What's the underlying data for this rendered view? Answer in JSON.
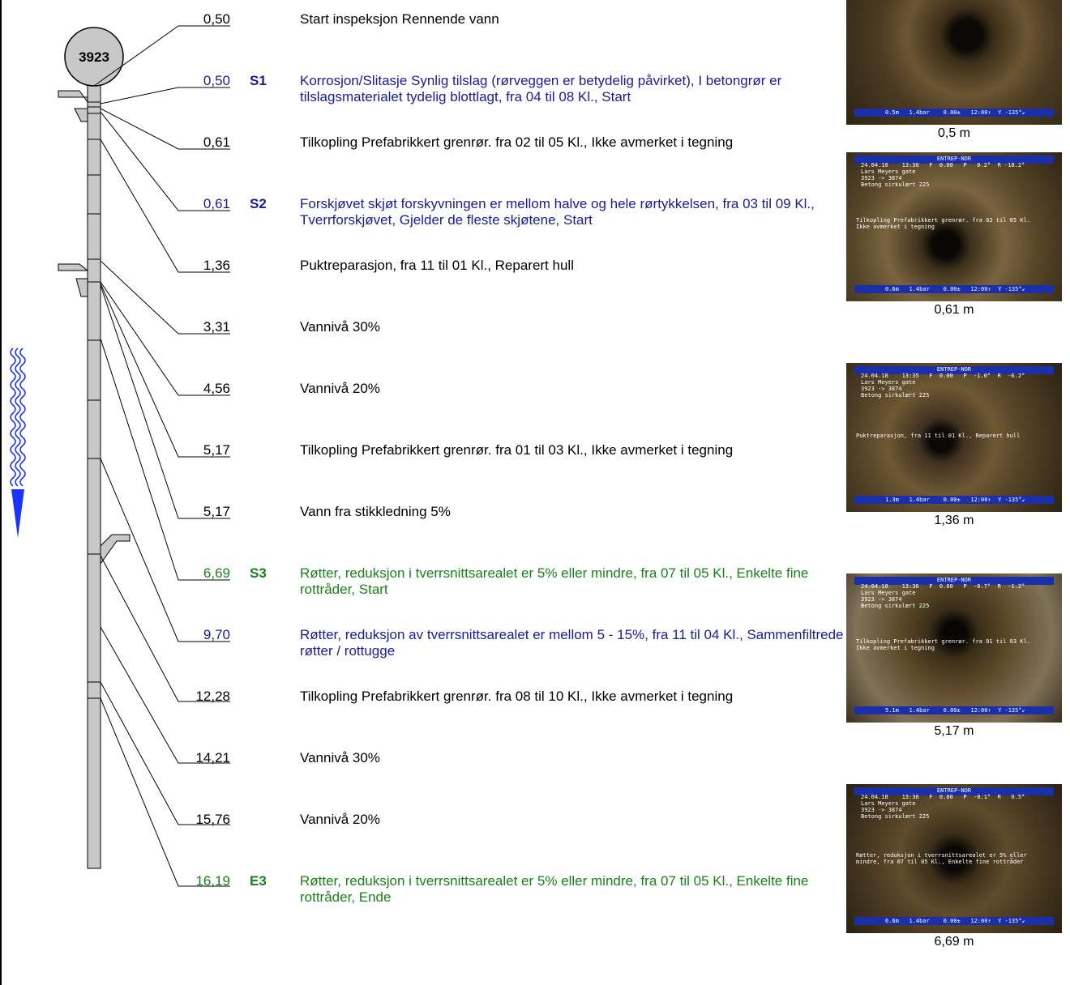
{
  "manhole_label": "3923",
  "colors": {
    "black": "#000000",
    "blue": "#1a1a99",
    "green": "#1a801a",
    "pipe": "#c8c8c8",
    "arrow": "#1a33ff"
  },
  "entries": [
    {
      "dist": "0,50",
      "code": "",
      "text": "Start inspeksjon Rennende vann",
      "color": "black"
    },
    {
      "dist": "0,50",
      "code": "S1",
      "text": "Korrosjon/Slitasje Synlig tilslag (rørveggen er betydelig påvirket), I betongrør er tilslagsmaterialet tydelig blottlagt, fra 04 til 08 Kl., Start",
      "color": "blue"
    },
    {
      "dist": "0,61",
      "code": "",
      "text": "Tilkopling Prefabrikkert grenrør. fra 02 til 05 Kl., Ikke avmerket i tegning",
      "color": "black"
    },
    {
      "dist": "0,61",
      "code": "S2",
      "text": "Forskjøvet skjøt forskyvningen er mellom halve og hele rørtykkelsen, fra 03 til 09 Kl., Tverrforskjøvet, Gjelder de fleste skjøtene, Start",
      "color": "blue"
    },
    {
      "dist": "1,36",
      "code": "",
      "text": "Puktreparasjon, fra 11 til 01 Kl., Reparert hull",
      "color": "black"
    },
    {
      "dist": "3,31",
      "code": "",
      "text": "Vannivå 30%",
      "color": "black"
    },
    {
      "dist": "4,56",
      "code": "",
      "text": "Vannivå 20%",
      "color": "black"
    },
    {
      "dist": "5,17",
      "code": "",
      "text": "Tilkopling Prefabrikkert grenrør. fra 01 til 03 Kl., Ikke avmerket i tegning",
      "color": "black"
    },
    {
      "dist": "5,17",
      "code": "",
      "text": "Vann fra stikkledning 5%",
      "color": "black"
    },
    {
      "dist": "6,69",
      "code": "S3",
      "text": "Røtter, reduksjon i tverrsnittsarealet er 5% eller mindre, fra 07 til 05 Kl., Enkelte fine rottråder, Start",
      "color": "green"
    },
    {
      "dist": "9,70",
      "code": "",
      "text": "Røtter, reduksjon av tverrsnittsarealet er mellom 5 - 15%, fra 11 til 04 Kl., Sammenfiltrede røtter / rottugge",
      "color": "blue"
    },
    {
      "dist": "12,28",
      "code": "",
      "text": "Tilkopling Prefabrikkert grenrør. fra 08 til 10 Kl., Ikke avmerket i tegning",
      "color": "black"
    },
    {
      "dist": "14,21",
      "code": "",
      "text": "Vannivå 30%",
      "color": "black"
    },
    {
      "dist": "15,76",
      "code": "",
      "text": "Vannivå 20%",
      "color": "black"
    },
    {
      "dist": "16,19",
      "code": "E3",
      "text": "Røtter, reduksjon i tverrsnittsarealet er 5% eller mindre, fra 07 til 05 Kl., Enkelte fine rottråder, Ende",
      "color": "green"
    }
  ],
  "photos": [
    {
      "caption": "0,5 m",
      "header_center": "",
      "header": "",
      "overlay": "Start inspeksjon Rennende vann",
      "footer": "0.5m   1.4bar    0.00±   12:00↑  Y -135°↙"
    },
    {
      "caption": "0,61 m",
      "header_center": "ENTREP-NOR",
      "header": "24.04.18    13:30   F  0.00   P   0.2°  R -18.2°\nLars Meyers gate\n3923 -> 3874\nBetong sirkulært 225",
      "overlay": "Tilkopling Prefabrikkert grenrør. fra 02 til 05 Kl.\nIkke avmerket i tegning",
      "footer": "0.6m   1.4bar    0.00±   12:00↑  Y -135°↙"
    },
    {
      "caption": "1,36 m",
      "header_center": "ENTREP-NOR",
      "header": "24.04.18    13:35   F  0.00   P  -1.0°  R  -6.2°\nLars Meyers gate\n3923 -> 3874\nBetong sirkulært 225",
      "overlay": "Puktreparasjon, fra 11 til 01 Kl., Reparert hull",
      "footer": "1.3m   1.4bar    0.00±   12:00↑  Y -135°↙"
    },
    {
      "caption": "5,17 m",
      "header_center": "ENTREP-NOR",
      "header": "24.04.18    13:36   F  0.00   P  -0.7°  R  -1.2°\nLars Meyers gate\n3923 -> 3874\nBetong sirkulært 225",
      "overlay": "Tilkopling Prefabrikkert grenrør. fra 01 til 03 Kl.\nIkke avmerket i tegning",
      "footer": "5.1m   1.4bar    0.00±   12:00↑  Y -135°↙"
    },
    {
      "caption": "6,69 m",
      "header_center": "ENTREP-NOR",
      "header": "24.04.18    13:36   F  0.00   P  -0.1°  R   0.5°\nLars Meyers gate\n3923 -> 3874\nBetong sirkulært 225",
      "overlay": "Røtter, reduksjon i tverrsnittsarealet er 5% eller\nmindre, fra 07 til 05 Kl., Enkelte fine rottråder",
      "footer": "6.6m   1.4bar    0.00±   12:00↑  Y -135°↙"
    }
  ]
}
